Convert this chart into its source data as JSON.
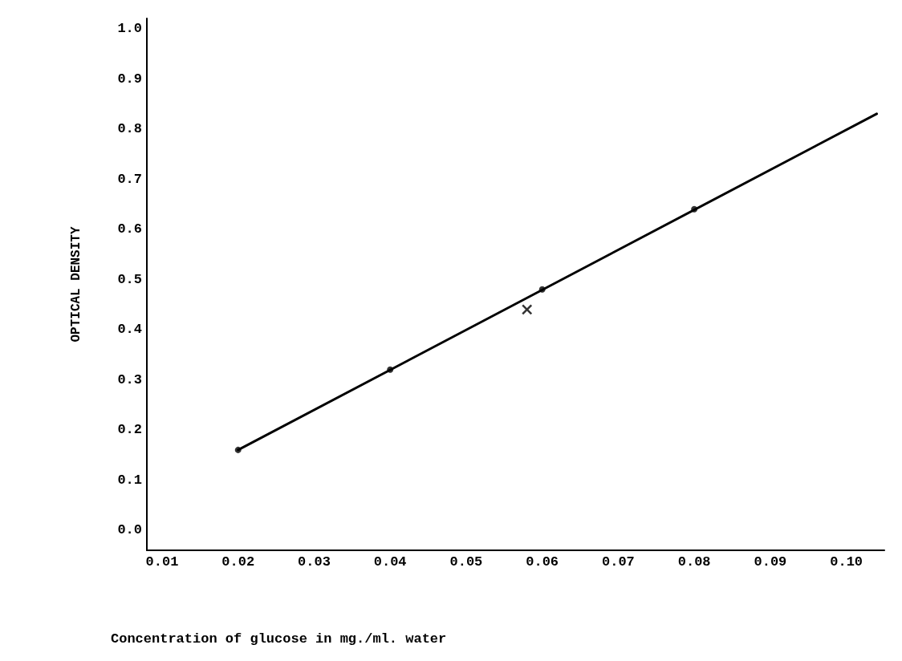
{
  "chart_data": {
    "type": "scatter",
    "xlabel": "Concentration of glucose in mg./ml. water",
    "ylabel": "OPTICAL DENSITY",
    "xlim": [
      0.008,
      0.105
    ],
    "xticks": [
      0.01,
      {
        "value": 0.02,
        "label": "0.02"
      },
      0.03,
      0.04,
      0.05,
      0.06,
      0.07,
      0.08,
      0.09,
      {
        "value": 0.1,
        "label": "0.10"
      }
    ],
    "ylim": [
      -0.04,
      1.02
    ],
    "yticks": [
      {
        "value": 0,
        "label": "0.0"
      },
      0.1,
      0.2,
      0.3,
      0.4,
      0.5,
      0.6,
      0.7,
      0.8,
      0.9,
      {
        "value": 1,
        "label": "1.0"
      }
    ],
    "grid": false,
    "series": [
      {
        "type": "line",
        "color": "#000000",
        "marker": "none",
        "line_style": "solid",
        "x": [
          0.02,
          0.104
        ],
        "values": [
          0.16,
          0.83
        ]
      },
      {
        "color": "#000000",
        "marker": "circle",
        "x": [
          0.02,
          0.04,
          0.06,
          0.08
        ],
        "values": [
          0.16,
          0.32,
          0.48,
          0.64
        ]
      },
      {
        "color": "#000000",
        "marker": "cross",
        "x": [
          0.058
        ],
        "values": [
          0.44
        ]
      }
    ]
  }
}
